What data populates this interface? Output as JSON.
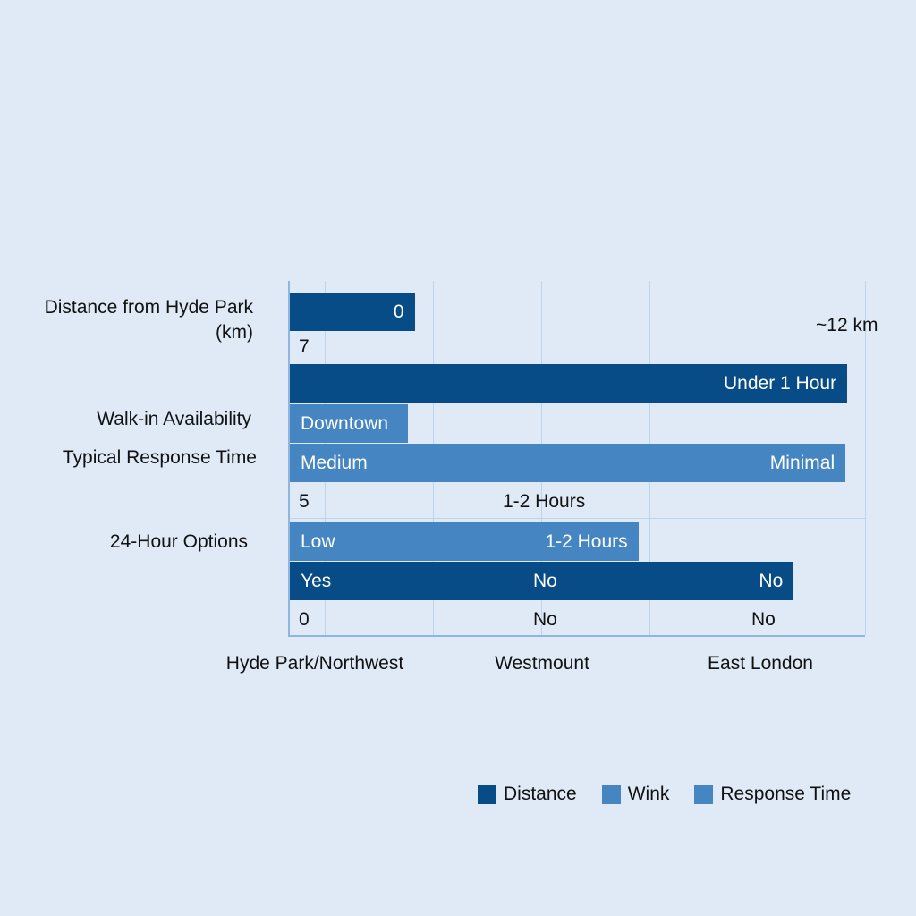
{
  "chart_data": {
    "type": "bar",
    "orientation": "horizontal",
    "y_labels": [
      "Distance from Hyde Park\n(km)",
      "Walk-in Availability",
      "Typical Response Time",
      "24-Hour Options"
    ],
    "x_categories": [
      "Hyde Park/Northwest",
      "Westmount",
      "East London"
    ],
    "grid": true,
    "legend_position": "bottom-right",
    "legend": [
      {
        "name": "Distance",
        "color": "#074c87"
      },
      {
        "name": "Wink",
        "color": "#4586c2"
      },
      {
        "name": "Response Time",
        "color": "#4586c2"
      }
    ],
    "bars_percent_of_axis": [
      {
        "row": 1,
        "value": 21.7,
        "color": "#074c87",
        "labels": [
          {
            "text": "0",
            "align": "right"
          }
        ]
      },
      {
        "row": 2,
        "value": 96.9,
        "color": "#074c87",
        "labels": [
          {
            "text": "Under 1 Hour",
            "align": "right"
          }
        ]
      },
      {
        "row": 3,
        "value": 20.5,
        "color": "#4586c2",
        "labels": [
          {
            "text": "Downtown",
            "align": "left"
          }
        ]
      },
      {
        "row": 4,
        "value": 96.6,
        "color": "#4586c2",
        "labels": [
          {
            "text": "Medium",
            "align": "left"
          },
          {
            "text": "Minimal",
            "align": "right"
          }
        ]
      },
      {
        "row": 5,
        "value": 60.6,
        "color": "#4586c2",
        "labels": [
          {
            "text": "Low",
            "align": "left"
          },
          {
            "text": "1-2 Hours",
            "align": "right"
          }
        ]
      },
      {
        "row": 6,
        "value": 87.6,
        "color": "#074c87",
        "labels": [
          {
            "text": "Yes",
            "align": "left"
          },
          {
            "text": "No",
            "align": "center"
          },
          {
            "text": "No",
            "align": "right"
          }
        ]
      }
    ],
    "annotations": [
      "7",
      "5",
      "1-2 Hours",
      "0",
      "No",
      "No",
      "~12 km"
    ]
  }
}
